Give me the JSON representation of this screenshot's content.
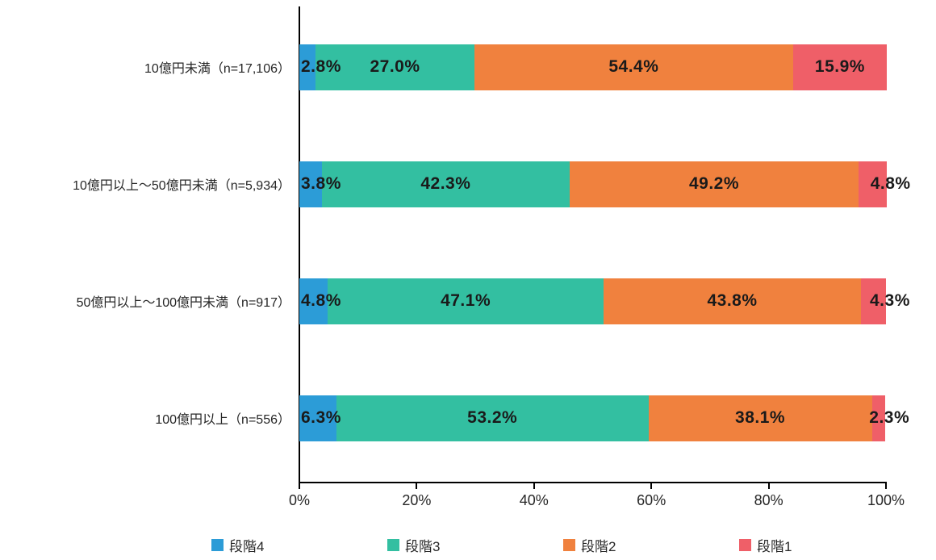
{
  "chart_data": {
    "type": "bar",
    "orientation": "horizontal",
    "stacked": true,
    "title": "",
    "xlabel": "",
    "ylabel": "",
    "xlim": [
      0,
      100
    ],
    "grid": false,
    "legend_position": "bottom",
    "categories": [
      "10億円未満（n=17,106）",
      "10億円以上～50億円未満（n=5,934）",
      "50億円以上～100億円未満（n=917）",
      "100億円以上（n=556）"
    ],
    "series": [
      {
        "name": "段階4",
        "color": "#2C9CD7",
        "values": [
          2.8,
          3.8,
          4.8,
          6.3
        ]
      },
      {
        "name": "段階3",
        "color": "#33BFA1",
        "values": [
          27.0,
          42.3,
          47.1,
          53.2
        ]
      },
      {
        "name": "段階2",
        "color": "#F0813E",
        "values": [
          54.4,
          49.2,
          43.8,
          38.1
        ]
      },
      {
        "name": "段階1",
        "color": "#EF5F68",
        "values": [
          15.9,
          4.8,
          4.3,
          2.3
        ]
      }
    ],
    "value_label_suffix": "%",
    "x_ticks": [
      {
        "value": 0,
        "label": "0%"
      },
      {
        "value": 20,
        "label": "20%"
      },
      {
        "value": 40,
        "label": "40%"
      },
      {
        "value": 60,
        "label": "60%"
      },
      {
        "value": 80,
        "label": "80%"
      },
      {
        "value": 100,
        "label": "100%"
      }
    ],
    "legend_items": [
      {
        "label": "段階4",
        "color": "#2C9CD7"
      },
      {
        "label": "段階3",
        "color": "#33BFA1"
      },
      {
        "label": "段階2",
        "color": "#F0813E"
      },
      {
        "label": "段階1",
        "color": "#EF5F68"
      }
    ]
  }
}
